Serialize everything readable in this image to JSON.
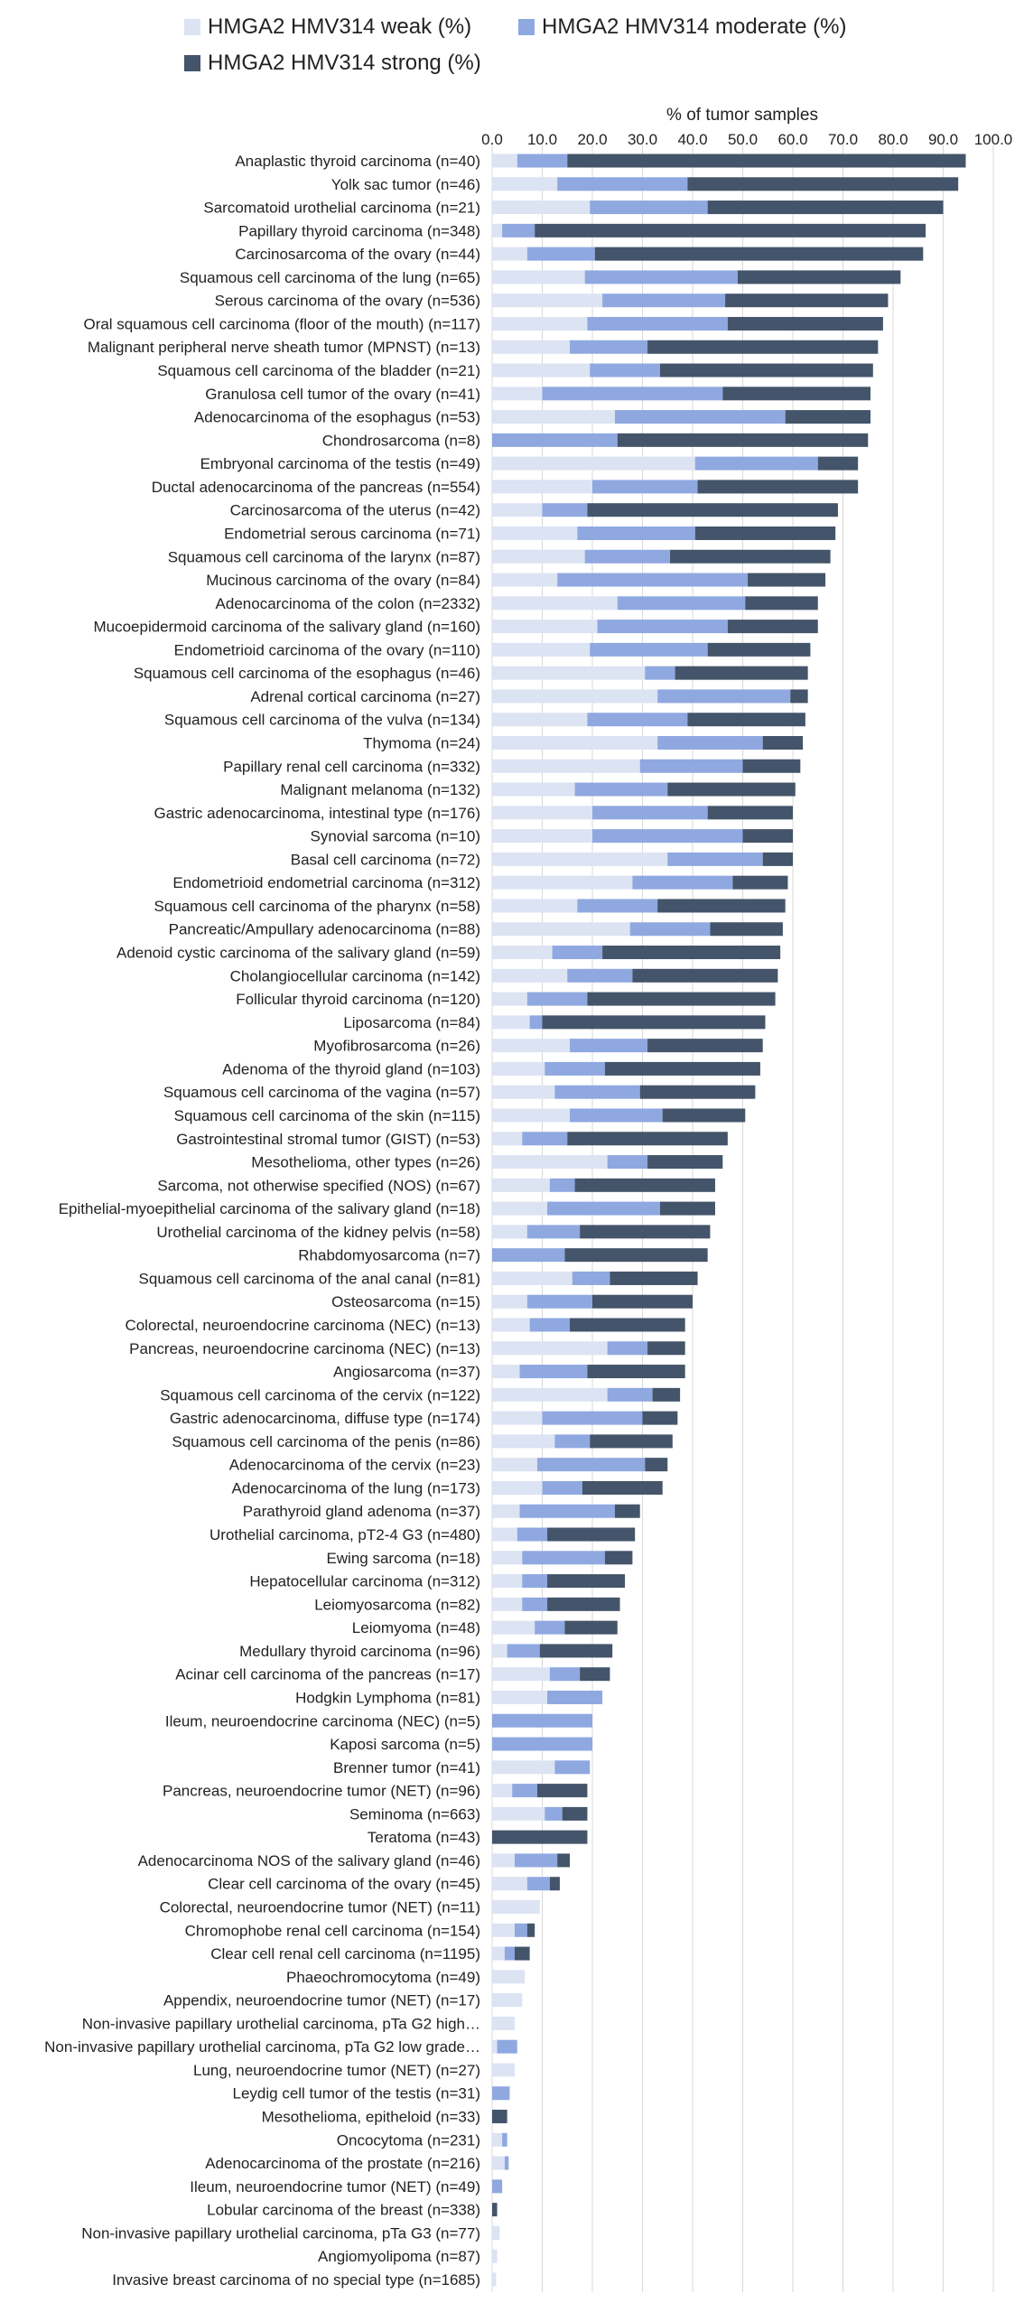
{
  "legend": [
    {
      "label": "HMGA2 HMV314 weak (%)",
      "color": "#dce3f3"
    },
    {
      "label": "HMGA2 HMV314 moderate (%)",
      "color": "#8fa8e0"
    },
    {
      "label": "HMGA2 HMV314 strong (%)",
      "color": "#44546a"
    }
  ],
  "chart_data": {
    "type": "bar",
    "orientation": "horizontal",
    "stacked": true,
    "title": "",
    "xlabel": "% of tumor samples",
    "ylabel": "",
    "xlim": [
      0,
      100
    ],
    "xticks": [
      "0.0",
      "10.0",
      "20.0",
      "30.0",
      "40.0",
      "50.0",
      "60.0",
      "70.0",
      "80.0",
      "90.0",
      "100.0"
    ],
    "x_axis_position": "top",
    "grid": "vertical",
    "legend_position": "top-left",
    "categories": [
      "Anaplastic thyroid carcinoma (n=40)",
      "Yolk sac tumor (n=46)",
      "Sarcomatoid urothelial carcinoma (n=21)",
      "Papillary thyroid carcinoma (n=348)",
      "Carcinosarcoma of the ovary (n=44)",
      "Squamous cell carcinoma of the lung (n=65)",
      "Serous carcinoma of the ovary (n=536)",
      "Oral squamous cell carcinoma (floor of the mouth) (n=117)",
      "Malignant peripheral nerve sheath tumor (MPNST) (n=13)",
      "Squamous cell carcinoma of the bladder (n=21)",
      "Granulosa cell tumor of the ovary (n=41)",
      "Adenocarcinoma of the esophagus (n=53)",
      "Chondrosarcoma (n=8)",
      "Embryonal carcinoma of the testis (n=49)",
      "Ductal adenocarcinoma of the pancreas (n=554)",
      "Carcinosarcoma of the uterus (n=42)",
      "Endometrial serous carcinoma (n=71)",
      "Squamous cell carcinoma of the larynx (n=87)",
      "Mucinous carcinoma of the ovary (n=84)",
      "Adenocarcinoma of the colon (n=2332)",
      "Mucoepidermoid carcinoma of the salivary gland (n=160)",
      "Endometrioid carcinoma of the ovary (n=110)",
      "Squamous cell carcinoma of the esophagus (n=46)",
      "Adrenal cortical carcinoma (n=27)",
      "Squamous cell carcinoma of the vulva (n=134)",
      "Thymoma (n=24)",
      "Papillary renal cell carcinoma (n=332)",
      "Malignant melanoma (n=132)",
      "Gastric adenocarcinoma, intestinal type (n=176)",
      "Synovial sarcoma (n=10)",
      "Basal cell carcinoma (n=72)",
      "Endometrioid endometrial carcinoma (n=312)",
      "Squamous cell carcinoma of the pharynx (n=58)",
      "Pancreatic/Ampullary adenocarcinoma (n=88)",
      "Adenoid cystic carcinoma of the salivary gland (n=59)",
      "Cholangiocellular carcinoma (n=142)",
      "Follicular thyroid carcinoma (n=120)",
      "Liposarcoma (n=84)",
      "Myofibrosarcoma (n=26)",
      "Adenoma of the thyroid gland (n=103)",
      "Squamous cell carcinoma of the vagina (n=57)",
      "Squamous cell carcinoma of the skin (n=115)",
      "Gastrointestinal stromal tumor (GIST) (n=53)",
      "Mesothelioma, other types (n=26)",
      "Sarcoma, not otherwise specified (NOS) (n=67)",
      "Epithelial-myoepithelial carcinoma of the salivary gland (n=18)",
      "Urothelial carcinoma of the kidney pelvis (n=58)",
      "Rhabdomyosarcoma (n=7)",
      "Squamous cell carcinoma of the anal canal (n=81)",
      "Osteosarcoma (n=15)",
      "Colorectal, neuroendocrine carcinoma (NEC) (n=13)",
      "Pancreas, neuroendocrine carcinoma (NEC) (n=13)",
      "Angiosarcoma (n=37)",
      "Squamous cell carcinoma of the cervix (n=122)",
      "Gastric adenocarcinoma, diffuse type (n=174)",
      "Squamous cell carcinoma of the penis (n=86)",
      "Adenocarcinoma of the cervix (n=23)",
      "Adenocarcinoma of the lung (n=173)",
      "Parathyroid gland adenoma (n=37)",
      "Urothelial carcinoma, pT2-4 G3 (n=480)",
      "Ewing sarcoma (n=18)",
      "Hepatocellular carcinoma (n=312)",
      "Leiomyosarcoma (n=82)",
      "Leiomyoma (n=48)",
      "Medullary thyroid carcinoma (n=96)",
      "Acinar cell carcinoma of the pancreas (n=17)",
      "Hodgkin Lymphoma (n=81)",
      "Ileum, neuroendocrine carcinoma (NEC) (n=5)",
      "Kaposi sarcoma (n=5)",
      "Brenner tumor (n=41)",
      "Pancreas, neuroendocrine tumor (NET) (n=96)",
      "Seminoma (n=663)",
      "Teratoma (n=43)",
      "Adenocarcinoma NOS of the salivary gland (n=46)",
      "Clear cell carcinoma of the ovary (n=45)",
      "Colorectal, neuroendocrine tumor (NET) (n=11)",
      "Chromophobe renal cell carcinoma (n=154)",
      "Clear cell renal cell carcinoma (n=1195)",
      "Phaeochromocytoma (n=49)",
      "Appendix, neuroendocrine tumor (NET) (n=17)",
      "Non-invasive papillary urothelial carcinoma, pTa G2 high…",
      "Non-invasive papillary urothelial carcinoma, pTa G2 low grade…",
      "Lung, neuroendocrine tumor (NET) (n=27)",
      "Leydig cell tumor of the testis (n=31)",
      "Mesothelioma, epitheloid (n=33)",
      "Oncocytoma (n=231)",
      "Adenocarcinoma of the prostate (n=216)",
      "Ileum, neuroendocrine tumor (NET) (n=49)",
      "Lobular carcinoma of the breast (n=338)",
      "Non-invasive papillary urothelial carcinoma, pTa G3 (n=77)",
      "Angiomyolipoma (n=87)",
      "Invasive breast carcinoma of no special type (n=1685)"
    ],
    "series": [
      {
        "name": "HMGA2 HMV314 weak (%)",
        "values": [
          5,
          13,
          19.5,
          2,
          7,
          18.5,
          22,
          19,
          15.5,
          19.5,
          10,
          24.5,
          0,
          40.5,
          20,
          10,
          17,
          18.5,
          13,
          25,
          21,
          19.5,
          30.5,
          33,
          19,
          33,
          29.5,
          16.5,
          20,
          20,
          35,
          28,
          17,
          27.5,
          12,
          15,
          7,
          7.5,
          15.5,
          10.5,
          12.5,
          15.5,
          6,
          23,
          11.5,
          11,
          7,
          0,
          16,
          7,
          7.5,
          23,
          5.5,
          23,
          10,
          12.5,
          9,
          10,
          5.5,
          5,
          6,
          6,
          6,
          8.5,
          3,
          11.5,
          11,
          0,
          0,
          12.5,
          4,
          10.5,
          0,
          4.5,
          7,
          9.5,
          4.5,
          2.5,
          6.5,
          6,
          4.5,
          1,
          4.5,
          0,
          0,
          2,
          2.5,
          0,
          0,
          1.5,
          1,
          0.8
        ]
      },
      {
        "name": "HMGA2 HMV314 moderate (%)",
        "values": [
          10,
          26,
          23.5,
          6.5,
          13.5,
          30.5,
          24.5,
          28,
          15.5,
          14,
          36,
          34,
          25,
          24.5,
          21,
          9,
          23.5,
          17,
          38,
          25.5,
          26,
          23.5,
          6,
          26.5,
          20,
          21,
          20.5,
          18.5,
          23,
          30,
          19,
          20,
          16,
          16,
          10,
          13,
          12,
          2.5,
          15.5,
          12,
          17,
          18.5,
          9,
          8,
          5,
          22.5,
          10.5,
          14.5,
          7.5,
          13,
          8,
          8,
          13.5,
          9,
          20,
          7,
          21.5,
          8,
          19,
          6,
          16.5,
          5,
          5,
          6,
          6.5,
          6,
          11,
          20,
          20,
          7,
          5,
          3.5,
          0,
          8.5,
          4.5,
          0,
          2.5,
          2,
          0,
          0,
          0,
          4,
          0,
          3.5,
          0,
          1,
          0.8,
          2,
          0,
          0,
          0,
          0
        ]
      },
      {
        "name": "HMGA2 HMV314 strong (%)",
        "values": [
          79.5,
          54,
          47,
          78,
          65.5,
          32.5,
          32.5,
          31,
          46,
          42.5,
          29.5,
          17,
          50,
          8,
          32,
          50,
          28,
          32,
          15.5,
          14.5,
          18,
          20.5,
          26.5,
          3.5,
          23.5,
          8,
          11.5,
          25.5,
          17,
          10,
          6,
          11,
          25.5,
          14.5,
          35.5,
          29,
          37.5,
          44.5,
          23,
          31,
          23,
          16.5,
          32,
          15,
          28,
          11,
          26,
          28.5,
          17.5,
          20,
          23,
          7.5,
          19.5,
          5.5,
          7,
          16.5,
          4.5,
          16,
          5,
          17.5,
          5.5,
          15.5,
          14.5,
          10.5,
          14.5,
          6,
          0,
          0,
          0,
          0,
          10,
          5,
          19,
          2.5,
          2,
          0,
          1.5,
          3,
          0,
          0,
          0,
          0,
          0,
          0,
          3,
          0,
          0,
          0,
          1,
          0,
          0,
          0
        ]
      }
    ]
  }
}
